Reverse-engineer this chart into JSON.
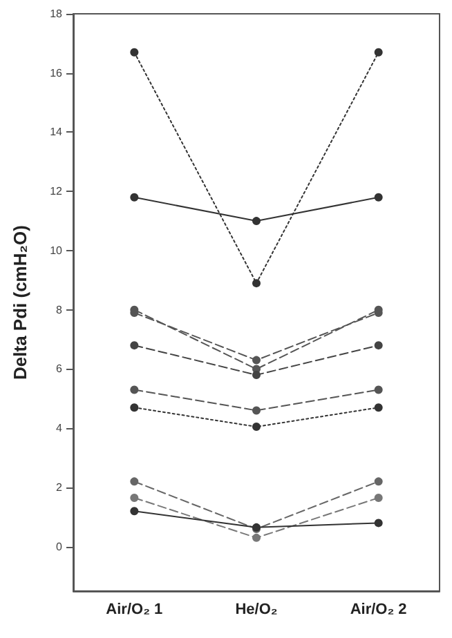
{
  "chart_data": {
    "type": "line",
    "ylabel": "Delta Pdi (cmH₂O)",
    "categories": [
      "Air/O₂ 1",
      "He/O₂",
      "Air/O₂ 2"
    ],
    "ylim": [
      -1.5,
      18
    ],
    "yticks": [
      0,
      2,
      4,
      6,
      8,
      10,
      12,
      14,
      16,
      18
    ],
    "grid": false,
    "marker": "circle",
    "series": [
      {
        "color": "#333333",
        "line_style": "dotted",
        "values": [
          16.7,
          8.9,
          16.7
        ]
      },
      {
        "color": "#333333",
        "line_style": "solid",
        "values": [
          11.8,
          11.0,
          11.8
        ]
      },
      {
        "color": "#555555",
        "line_style": "dashed",
        "values": [
          8.0,
          6.0,
          8.0
        ]
      },
      {
        "color": "#555555",
        "line_style": "dashed",
        "values": [
          7.9,
          6.3,
          7.9
        ]
      },
      {
        "color": "#444444",
        "line_style": "dashed",
        "values": [
          6.8,
          5.8,
          6.8
        ]
      },
      {
        "color": "#555555",
        "line_style": "dashed",
        "values": [
          5.3,
          4.6,
          5.3
        ]
      },
      {
        "color": "#333333",
        "line_style": "dotted",
        "values": [
          4.7,
          4.05,
          4.7
        ]
      },
      {
        "color": "#666666",
        "line_style": "dashed",
        "values": [
          2.2,
          0.6,
          2.2
        ]
      },
      {
        "color": "#777777",
        "line_style": "dashed",
        "values": [
          1.65,
          0.3,
          1.65
        ]
      },
      {
        "color": "#333333",
        "line_style": "solid",
        "values": [
          1.2,
          0.65,
          0.8
        ]
      }
    ]
  }
}
